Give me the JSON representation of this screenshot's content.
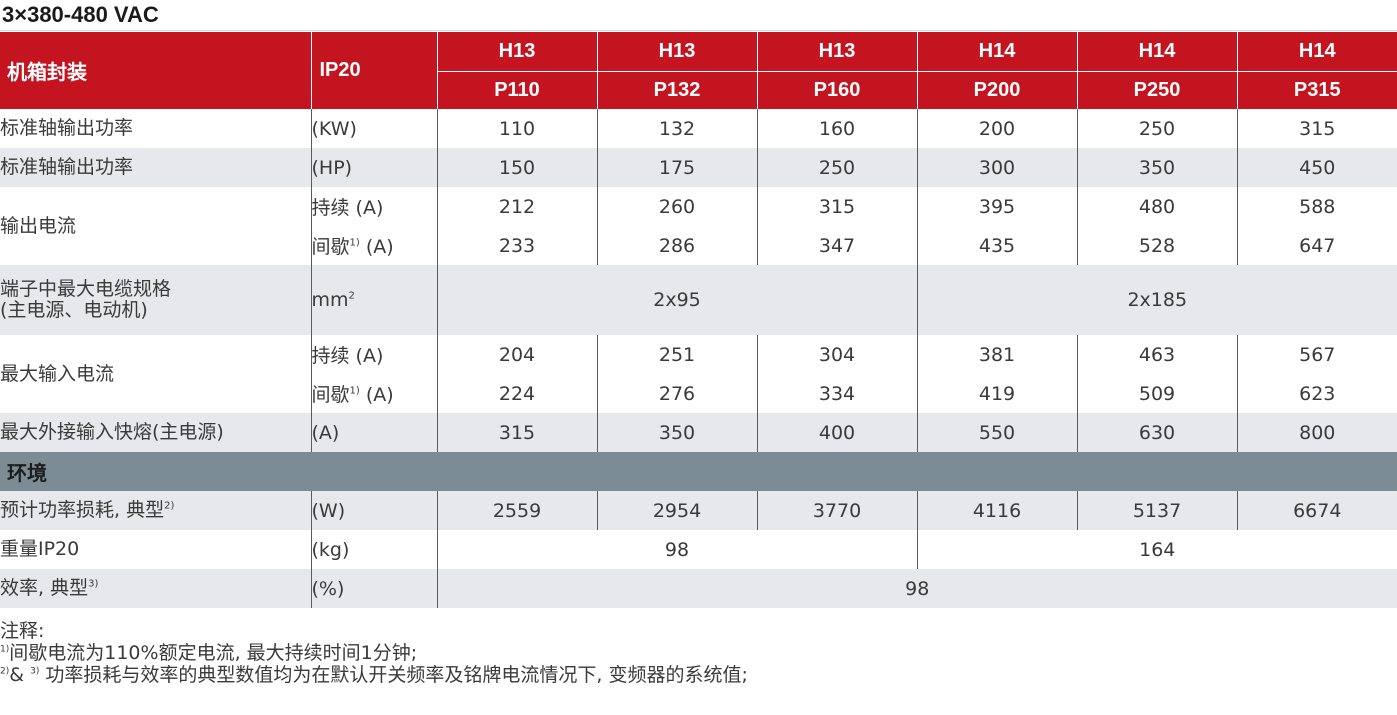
{
  "title": "3×380-480 VAC",
  "header": {
    "label": "机箱封装",
    "ip": "IP20",
    "frames": [
      "H13",
      "H13",
      "H13",
      "H14",
      "H14",
      "H14"
    ],
    "models": [
      "P110",
      "P132",
      "P160",
      "P200",
      "P250",
      "P315"
    ]
  },
  "rows": {
    "power_kw": {
      "label": "标准轴输出功率",
      "unit": "(KW)",
      "values": [
        "110",
        "132",
        "160",
        "200",
        "250",
        "315"
      ]
    },
    "power_hp": {
      "label": "标准轴输出功率",
      "unit": "(HP)",
      "values": [
        "150",
        "175",
        "250",
        "300",
        "350",
        "450"
      ]
    },
    "output_current": {
      "label": "输出电流",
      "cont_unit": "持续 (A)",
      "inter_unit_prefix": "间歇",
      "inter_unit_sup": "1)",
      "inter_unit_suffix": " (A)",
      "cont_values": [
        "212",
        "260",
        "315",
        "395",
        "480",
        "588"
      ],
      "inter_values": [
        "233",
        "286",
        "347",
        "435",
        "528",
        "647"
      ]
    },
    "cable": {
      "label_line1": "端子中最大电缆规格",
      "label_line2": "(主电源、电动机)",
      "unit": "mm",
      "unit_sup": "2",
      "values": [
        "2x95",
        "2x185"
      ]
    },
    "input_current": {
      "label": "最大输入电流",
      "cont_unit": "持续 (A)",
      "inter_unit_prefix": "间歇",
      "inter_unit_sup": "1)",
      "inter_unit_suffix": " (A)",
      "cont_values": [
        "204",
        "251",
        "304",
        "381",
        "463",
        "567"
      ],
      "inter_values": [
        "224",
        "276",
        "334",
        "419",
        "509",
        "623"
      ]
    },
    "fuse": {
      "label": "最大外接输入快熔(主电源)",
      "unit": "(A)",
      "values": [
        "315",
        "350",
        "400",
        "550",
        "630",
        "800"
      ]
    },
    "env_section": "环境",
    "loss": {
      "label": "预计功率损耗, 典型",
      "label_sup": "2)",
      "unit": "(W)",
      "values": [
        "2559",
        "2954",
        "3770",
        "4116",
        "5137",
        "6674"
      ]
    },
    "weight": {
      "label": "重量IP20",
      "unit": "(kg)",
      "values": [
        "98",
        "164"
      ]
    },
    "efficiency": {
      "label": "效率, 典型",
      "label_sup": "3)",
      "unit": "(%)",
      "value": "98"
    }
  },
  "notes": {
    "heading": "注释:",
    "note1_sup": "1)",
    "note1": "间歇电流为110%额定电流, 最大持续时间1分钟;",
    "note2_sup_a": "2)",
    "note2_amp": "& ",
    "note2_sup_b": "3)",
    "note2": " 功率损耗与效率的典型数值均为在默认开关频率及铭牌电流情况下, 变频器的系统值;"
  }
}
